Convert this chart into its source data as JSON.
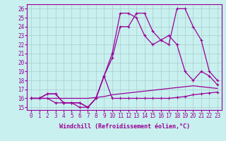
{
  "xlabel": "Windchill (Refroidissement éolien,°C)",
  "bg_color": "#c8f0ee",
  "line_color": "#990099",
  "xlim": [
    -0.5,
    23.5
  ],
  "ylim": [
    14.7,
    26.5
  ],
  "xticks": [
    0,
    1,
    2,
    3,
    4,
    5,
    6,
    7,
    8,
    9,
    10,
    11,
    12,
    13,
    14,
    15,
    16,
    17,
    18,
    19,
    20,
    21,
    22,
    23
  ],
  "yticks": [
    15,
    16,
    17,
    18,
    19,
    20,
    21,
    22,
    23,
    24,
    25,
    26
  ],
  "line1_y": [
    16,
    16,
    16,
    15.5,
    15.5,
    15.5,
    15,
    15,
    16,
    18.5,
    16,
    16,
    16,
    16,
    16,
    16,
    16,
    16,
    16.1,
    16.2,
    16.4,
    16.5,
    16.6,
    16.7
  ],
  "line2_y": [
    16,
    16,
    16.5,
    16.5,
    15.5,
    15.5,
    15.5,
    15,
    16,
    18.5,
    20.5,
    24,
    24,
    25.5,
    25.5,
    23.5,
    22.5,
    22.0,
    26.0,
    26.0,
    24.0,
    22.5,
    19.0,
    18.0
  ],
  "line3_y": [
    16,
    16,
    16.5,
    16.5,
    15.5,
    15.5,
    15.5,
    15,
    16,
    18.5,
    21,
    25.5,
    25.5,
    25.0,
    23.0,
    22.0,
    22.5,
    23.0,
    22.0,
    19.0,
    18.0,
    19.0,
    18.5,
    17.5
  ],
  "line4_y": [
    16,
    16,
    16,
    16,
    16,
    16,
    16,
    16,
    16.1,
    16.2,
    16.4,
    16.5,
    16.6,
    16.7,
    16.8,
    16.9,
    17.0,
    17.1,
    17.2,
    17.3,
    17.4,
    17.3,
    17.2,
    17.1
  ],
  "marker": "+",
  "markersize": 3,
  "linewidth": 0.9,
  "tick_fontsize": 5.5,
  "xlabel_fontsize": 6.0
}
